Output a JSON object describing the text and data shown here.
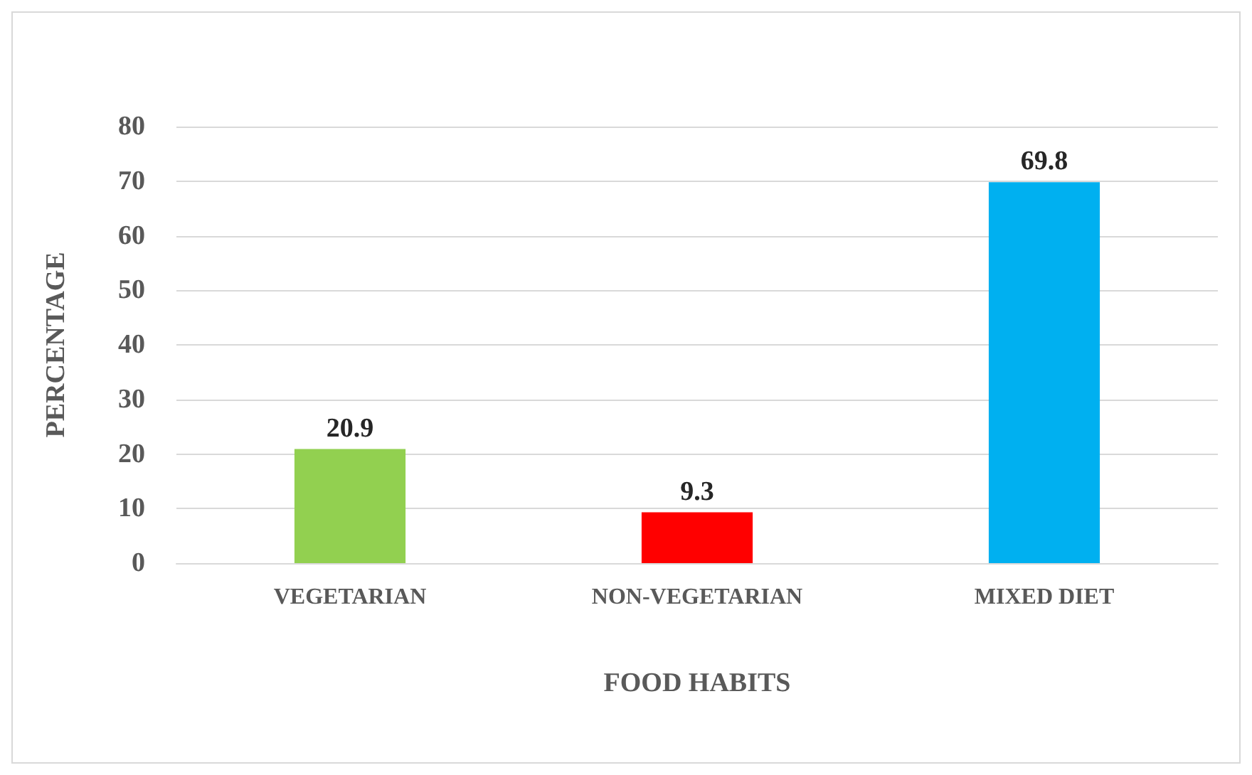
{
  "chart_data": {
    "type": "bar",
    "xlabel": "FOOD HABITS",
    "ylabel": "PERCENTAGE",
    "categories": [
      "VEGETARIAN",
      "NON-VEGETARIAN",
      "MIXED DIET"
    ],
    "values": [
      20.9,
      9.3,
      69.8
    ],
    "colors": [
      "#92d050",
      "#ff0000",
      "#00b0f0"
    ],
    "ylim": [
      0,
      80
    ],
    "yticks": [
      0,
      10,
      20,
      30,
      40,
      50,
      60,
      70,
      80
    ],
    "grid": "y",
    "data_labels": true
  }
}
